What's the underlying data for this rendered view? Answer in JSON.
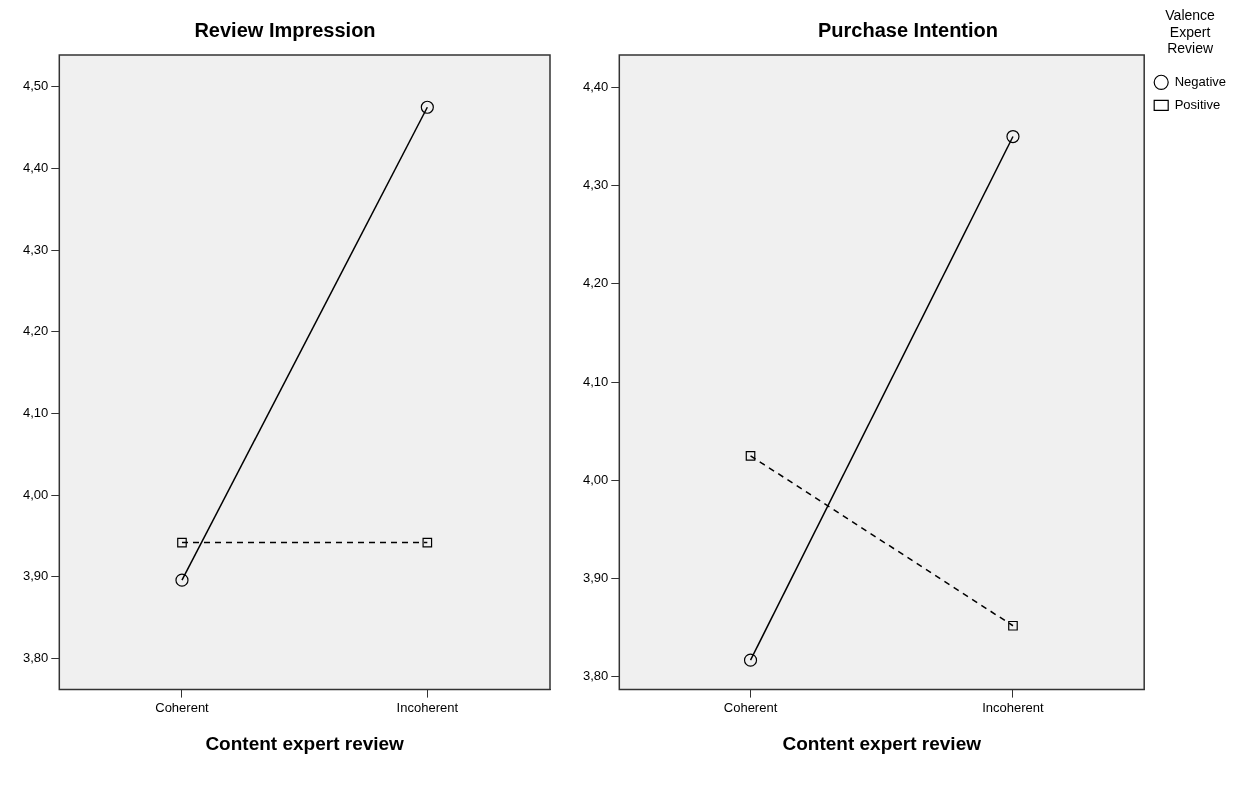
{
  "chart_data": [
    {
      "type": "line",
      "title": "Review Impression",
      "xlabel": "Content expert review",
      "categories": [
        "Coherent",
        "Incoherent"
      ],
      "series": [
        {
          "color": "#000000",
          "values": [
            3.896,
            4.475
          ],
          "marker": "circle",
          "line_style": "solid"
        },
        {
          "color": "#000000",
          "values": [
            3.942,
            3.942
          ],
          "marker": "square",
          "line_style": "dashed"
        }
      ],
      "ylim": [
        3.762,
        4.539
      ],
      "yticks": [
        {
          "value": 3.8,
          "label": "3,80"
        },
        {
          "value": 3.9,
          "label": "3,90"
        },
        {
          "value": 4.0,
          "label": "4,00"
        },
        {
          "value": 4.1,
          "label": "4,10"
        },
        {
          "value": 4.2,
          "label": "4,20"
        },
        {
          "value": 4.3,
          "label": "4,30"
        },
        {
          "value": 4.4,
          "label": "4,40"
        },
        {
          "value": 4.5,
          "label": "4,50"
        }
      ],
      "grid": false,
      "legend": false
    },
    {
      "type": "line",
      "title": "Purchase Intention",
      "xlabel": "Content expert review",
      "legend_title": "Valence Expert Review",
      "categories": [
        "Coherent",
        "Incoherent"
      ],
      "series": [
        {
          "name": "Negative",
          "color": "#000000",
          "values": [
            3.817,
            4.35
          ],
          "marker": "circle",
          "line_style": "solid"
        },
        {
          "name": "Positive",
          "color": "#000000",
          "values": [
            4.025,
            3.852
          ],
          "marker": "square",
          "line_style": "dashed"
        }
      ],
      "ylim": [
        3.787,
        4.433
      ],
      "yticks": [
        {
          "value": 3.8,
          "label": "3,80"
        },
        {
          "value": 3.9,
          "label": "3,90"
        },
        {
          "value": 4.0,
          "label": "4,00"
        },
        {
          "value": 4.1,
          "label": "4,10"
        },
        {
          "value": 4.2,
          "label": "4,20"
        },
        {
          "value": 4.3,
          "label": "4,30"
        },
        {
          "value": 4.4,
          "label": "4,40"
        }
      ],
      "grid": false,
      "legend": "right"
    }
  ]
}
